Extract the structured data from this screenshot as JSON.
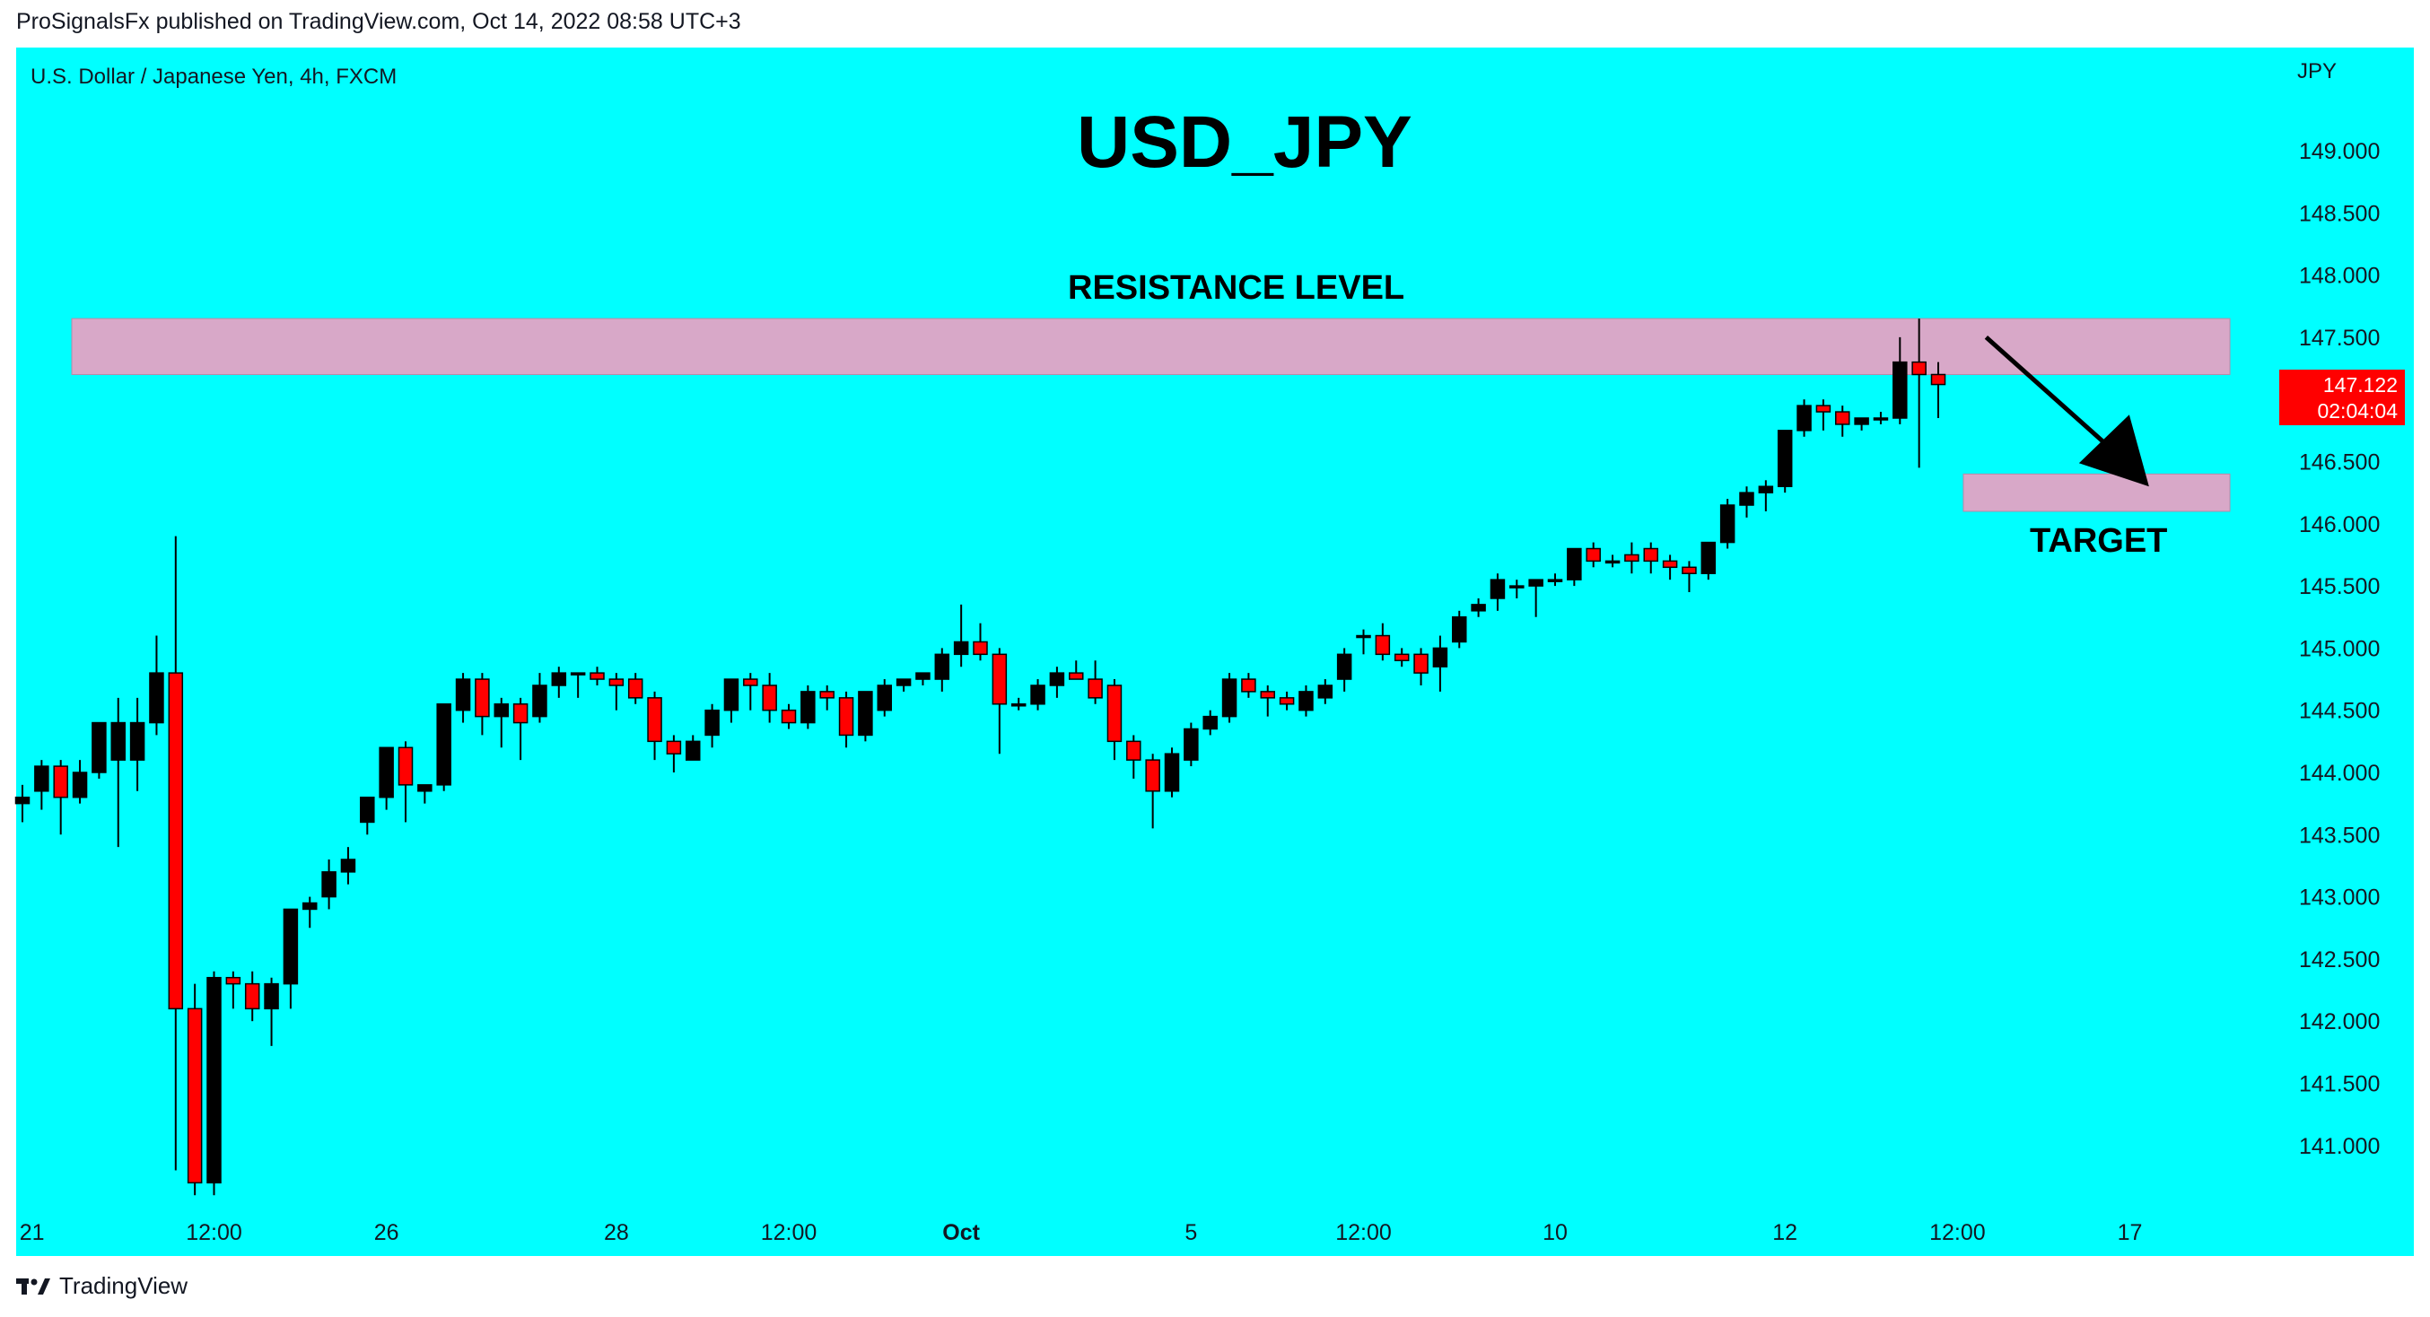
{
  "header": {
    "published": "ProSignalsFx published on TradingView.com, Oct 14, 2022 08:58 UTC+3"
  },
  "chart_header": {
    "symbol": "U.S. Dollar / Japanese Yen, 4h, FXCM",
    "unit": "JPY"
  },
  "annotations": {
    "title": "USD_JPY",
    "resistance": "RESISTANCE LEVEL",
    "target": "TARGET"
  },
  "price_tag": {
    "price": "147.122",
    "countdown": "02:04:04"
  },
  "footer": {
    "brand": "TradingView"
  },
  "colors": {
    "background": "#00ffff",
    "up_candle": "#000000",
    "down_candle": "#ff0000",
    "zone": "#d8a8c8",
    "price_tag": "#ff0000"
  },
  "chart_data": {
    "type": "candlestick",
    "ylim": [
      140.5,
      149.5
    ],
    "y_ticks": [
      "141.000",
      "141.500",
      "142.000",
      "142.500",
      "143.000",
      "143.500",
      "144.000",
      "144.500",
      "145.000",
      "145.500",
      "146.000",
      "146.500",
      "147.000",
      "147.500",
      "148.000",
      "148.500",
      "149.000"
    ],
    "x_tick_labels": [
      "21",
      "12:00",
      "26",
      "28",
      "12:00",
      "Oct",
      "5",
      "12:00",
      "10",
      "12",
      "12:00",
      "17"
    ],
    "x_tick_index": [
      0.5,
      10,
      19,
      31,
      40,
      49,
      61,
      70,
      80,
      92,
      101,
      110
    ],
    "resistance_zone": [
      147.2,
      147.65
    ],
    "target_zone": [
      146.1,
      146.4
    ],
    "arrow": {
      "from": [
        102.5,
        147.5
      ],
      "to": [
        111,
        146.3
      ]
    },
    "candles": [
      [
        143.75,
        143.9,
        143.6,
        143.8
      ],
      [
        143.85,
        144.1,
        143.7,
        144.05
      ],
      [
        144.05,
        144.1,
        143.5,
        143.8
      ],
      [
        143.8,
        144.1,
        143.75,
        144.0
      ],
      [
        144.0,
        144.4,
        143.95,
        144.4
      ],
      [
        144.1,
        144.6,
        143.4,
        144.4
      ],
      [
        144.1,
        144.6,
        143.85,
        144.4
      ],
      [
        144.4,
        145.1,
        144.3,
        144.8
      ],
      [
        144.8,
        145.9,
        140.8,
        142.1
      ],
      [
        142.1,
        142.3,
        140.6,
        140.7
      ],
      [
        140.7,
        142.4,
        140.6,
        142.35
      ],
      [
        142.35,
        142.4,
        142.1,
        142.3
      ],
      [
        142.3,
        142.4,
        142.0,
        142.1
      ],
      [
        142.1,
        142.35,
        141.8,
        142.3
      ],
      [
        142.3,
        142.9,
        142.1,
        142.9
      ],
      [
        142.9,
        143.0,
        142.75,
        142.95
      ],
      [
        143.0,
        143.3,
        142.9,
        143.2
      ],
      [
        143.2,
        143.4,
        143.1,
        143.3
      ],
      [
        143.6,
        143.8,
        143.5,
        143.8
      ],
      [
        143.8,
        144.2,
        143.7,
        144.2
      ],
      [
        144.2,
        144.25,
        143.6,
        143.9
      ],
      [
        143.85,
        143.9,
        143.75,
        143.9
      ],
      [
        143.9,
        144.55,
        143.85,
        144.55
      ],
      [
        144.5,
        144.8,
        144.4,
        144.75
      ],
      [
        144.75,
        144.8,
        144.3,
        144.45
      ],
      [
        144.45,
        144.6,
        144.2,
        144.55
      ],
      [
        144.55,
        144.6,
        144.1,
        144.4
      ],
      [
        144.45,
        144.8,
        144.4,
        144.7
      ],
      [
        144.7,
        144.85,
        144.6,
        144.8
      ],
      [
        144.8,
        144.8,
        144.6,
        144.8
      ],
      [
        144.8,
        144.85,
        144.7,
        144.75
      ],
      [
        144.75,
        144.8,
        144.5,
        144.7
      ],
      [
        144.75,
        144.8,
        144.55,
        144.6
      ],
      [
        144.6,
        144.65,
        144.1,
        144.25
      ],
      [
        144.25,
        144.3,
        144.0,
        144.15
      ],
      [
        144.1,
        144.3,
        144.1,
        144.25
      ],
      [
        144.3,
        144.55,
        144.2,
        144.5
      ],
      [
        144.5,
        144.75,
        144.4,
        144.75
      ],
      [
        144.75,
        144.8,
        144.5,
        144.7
      ],
      [
        144.7,
        144.8,
        144.4,
        144.5
      ],
      [
        144.5,
        144.55,
        144.35,
        144.4
      ],
      [
        144.4,
        144.7,
        144.35,
        144.65
      ],
      [
        144.65,
        144.7,
        144.5,
        144.6
      ],
      [
        144.6,
        144.65,
        144.2,
        144.3
      ],
      [
        144.3,
        144.65,
        144.25,
        144.65
      ],
      [
        144.5,
        144.75,
        144.45,
        144.7
      ],
      [
        144.7,
        144.75,
        144.65,
        144.75
      ],
      [
        144.75,
        144.8,
        144.7,
        144.8
      ],
      [
        144.75,
        145.0,
        144.65,
        144.95
      ],
      [
        144.95,
        145.35,
        144.85,
        145.05
      ],
      [
        145.05,
        145.2,
        144.9,
        144.95
      ],
      [
        144.95,
        145.0,
        144.15,
        144.55
      ],
      [
        144.55,
        144.6,
        144.5,
        144.55
      ],
      [
        144.55,
        144.75,
        144.5,
        144.7
      ],
      [
        144.7,
        144.85,
        144.6,
        144.8
      ],
      [
        144.8,
        144.9,
        144.75,
        144.75
      ],
      [
        144.75,
        144.9,
        144.55,
        144.6
      ],
      [
        144.7,
        144.75,
        144.1,
        144.25
      ],
      [
        144.25,
        144.3,
        143.95,
        144.1
      ],
      [
        144.1,
        144.15,
        143.55,
        143.85
      ],
      [
        143.85,
        144.2,
        143.8,
        144.15
      ],
      [
        144.1,
        144.4,
        144.05,
        144.35
      ],
      [
        144.35,
        144.5,
        144.3,
        144.45
      ],
      [
        144.45,
        144.8,
        144.4,
        144.75
      ],
      [
        144.75,
        144.8,
        144.6,
        144.65
      ],
      [
        144.65,
        144.7,
        144.45,
        144.6
      ],
      [
        144.6,
        144.65,
        144.5,
        144.55
      ],
      [
        144.5,
        144.7,
        144.45,
        144.65
      ],
      [
        144.6,
        144.75,
        144.55,
        144.7
      ],
      [
        144.75,
        145.0,
        144.65,
        144.95
      ],
      [
        145.1,
        145.15,
        144.95,
        145.1
      ],
      [
        145.1,
        145.2,
        144.9,
        144.95
      ],
      [
        144.95,
        145.0,
        144.85,
        144.9
      ],
      [
        144.95,
        145.0,
        144.7,
        144.8
      ],
      [
        144.85,
        145.1,
        144.65,
        145.0
      ],
      [
        145.05,
        145.3,
        145.0,
        145.25
      ],
      [
        145.3,
        145.4,
        145.25,
        145.35
      ],
      [
        145.4,
        145.6,
        145.3,
        145.55
      ],
      [
        145.5,
        145.55,
        145.4,
        145.5
      ],
      [
        145.5,
        145.55,
        145.25,
        145.55
      ],
      [
        145.55,
        145.6,
        145.5,
        145.55
      ],
      [
        145.55,
        145.8,
        145.5,
        145.8
      ],
      [
        145.8,
        145.85,
        145.65,
        145.7
      ],
      [
        145.7,
        145.75,
        145.65,
        145.7
      ],
      [
        145.75,
        145.85,
        145.6,
        145.7
      ],
      [
        145.8,
        145.85,
        145.6,
        145.7
      ],
      [
        145.7,
        145.75,
        145.55,
        145.65
      ],
      [
        145.65,
        145.7,
        145.45,
        145.6
      ],
      [
        145.6,
        145.85,
        145.55,
        145.85
      ],
      [
        145.85,
        146.2,
        145.8,
        146.15
      ],
      [
        146.15,
        146.3,
        146.05,
        146.25
      ],
      [
        146.25,
        146.35,
        146.1,
        146.3
      ],
      [
        146.3,
        146.75,
        146.25,
        146.75
      ],
      [
        146.75,
        147.0,
        146.7,
        146.95
      ],
      [
        146.95,
        147.0,
        146.75,
        146.9
      ],
      [
        146.9,
        146.95,
        146.7,
        146.8
      ],
      [
        146.8,
        146.85,
        146.75,
        146.85
      ],
      [
        146.85,
        146.9,
        146.8,
        146.85
      ],
      [
        146.85,
        147.5,
        146.8,
        147.3
      ],
      [
        147.3,
        147.65,
        146.45,
        147.2
      ],
      [
        147.2,
        147.3,
        146.85,
        147.12
      ]
    ]
  }
}
